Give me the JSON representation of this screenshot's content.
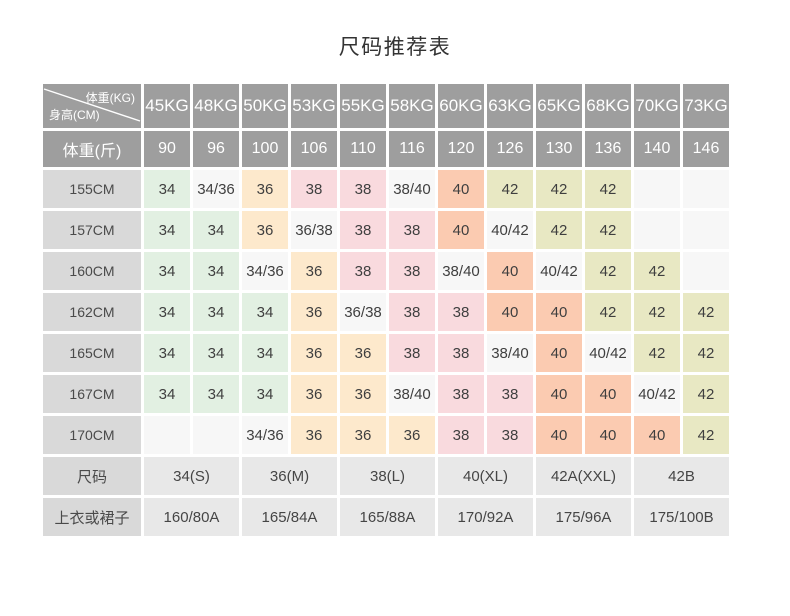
{
  "title": "尺码推荐表",
  "colors": {
    "header_bg": "#9e9e9e",
    "header_text": "#ffffff",
    "row_label_bg": "#d9d9d9",
    "footer_bg": "#e8e8e8",
    "body_text": "#3f3f3f",
    "cell_34": "#e2f0e2",
    "cell_36": "#fde9cc",
    "cell_38": "#f9dade",
    "cell_40": "#fbcbb1",
    "cell_42": "#e8e8c3",
    "cell_neutral": "#f7f7f7"
  },
  "chart_data": {
    "type": "table",
    "title": "尺码推荐表",
    "corner": {
      "top_right": "体重(KG)",
      "bottom_left": "身高(CM)"
    },
    "columns_kg": [
      "45KG",
      "48KG",
      "50KG",
      "53KG",
      "55KG",
      "58KG",
      "60KG",
      "63KG",
      "65KG",
      "68KG",
      "70KG",
      "73KG"
    ],
    "weight_jin": {
      "label": "体重(斤)",
      "values": [
        "90",
        "96",
        "100",
        "106",
        "110",
        "116",
        "120",
        "126",
        "130",
        "136",
        "140",
        "146"
      ]
    },
    "height_rows": [
      {
        "label": "155CM",
        "cells": [
          "34",
          "34/36",
          "36",
          "38",
          "38",
          "38/40",
          "40",
          "42",
          "42",
          "42",
          "",
          ""
        ]
      },
      {
        "label": "157CM",
        "cells": [
          "34",
          "34",
          "36",
          "36/38",
          "38",
          "38",
          "40",
          "40/42",
          "42",
          "42",
          "",
          ""
        ]
      },
      {
        "label": "160CM",
        "cells": [
          "34",
          "34",
          "34/36",
          "36",
          "38",
          "38",
          "38/40",
          "40",
          "40/42",
          "42",
          "42",
          ""
        ]
      },
      {
        "label": "162CM",
        "cells": [
          "34",
          "34",
          "34",
          "36",
          "36/38",
          "38",
          "38",
          "40",
          "40",
          "42",
          "42",
          "42"
        ]
      },
      {
        "label": "165CM",
        "cells": [
          "34",
          "34",
          "34",
          "36",
          "36",
          "38",
          "38",
          "38/40",
          "40",
          "40/42",
          "42",
          "42"
        ]
      },
      {
        "label": "167CM",
        "cells": [
          "34",
          "34",
          "34",
          "36",
          "36",
          "38/40",
          "38",
          "38",
          "40",
          "40",
          "40/42",
          "42"
        ]
      },
      {
        "label": "170CM",
        "cells": [
          "",
          "",
          "34/36",
          "36",
          "36",
          "36",
          "38",
          "38",
          "40",
          "40",
          "40",
          "42"
        ]
      }
    ],
    "size_row": {
      "label": "尺码",
      "values": [
        "34(S)",
        "36(M)",
        "38(L)",
        "40(XL)",
        "42A(XXL)",
        "42B"
      ]
    },
    "garment_row": {
      "label": "上衣或裙子",
      "values": [
        "160/80A",
        "165/84A",
        "165/88A",
        "170/92A",
        "175/96A",
        "175/100B"
      ]
    }
  }
}
